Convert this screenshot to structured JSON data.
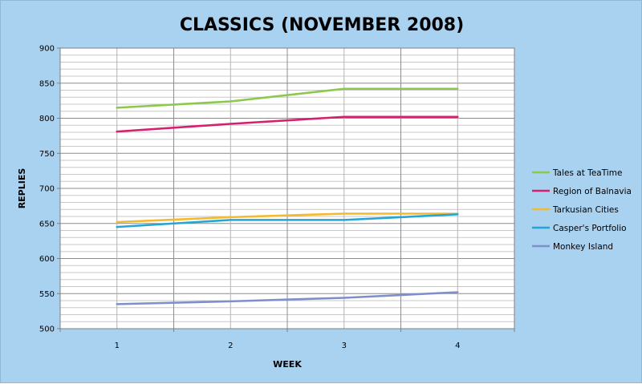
{
  "chart_data": {
    "type": "line",
    "title": "CLASSICS (NOVEMBER 2008)",
    "xlabel": "WEEK",
    "ylabel": "REPLIES",
    "categories": [
      "1",
      "2",
      "3",
      "4"
    ],
    "ylim": [
      500,
      900
    ],
    "y_major_ticks": [
      500,
      550,
      600,
      650,
      700,
      750,
      800,
      850,
      900
    ],
    "y_minor_step": 10,
    "grid": true,
    "legend_position": "right",
    "series": [
      {
        "name": "Tales at TeaTime",
        "color": "#8cc84b",
        "values": [
          815,
          824,
          842,
          842
        ]
      },
      {
        "name": "Region of Balnavia",
        "color": "#d61f6e",
        "values": [
          781,
          792,
          802,
          802
        ]
      },
      {
        "name": "Tarkusian Cities",
        "color": "#f5b92e",
        "values": [
          652,
          659,
          664,
          664
        ]
      },
      {
        "name": "Casper's Portfolio",
        "color": "#23a6d5",
        "values": [
          645,
          655,
          655,
          663
        ]
      },
      {
        "name": "Monkey Island",
        "color": "#7f8fcc",
        "values": [
          535,
          539,
          544,
          552
        ]
      }
    ]
  }
}
